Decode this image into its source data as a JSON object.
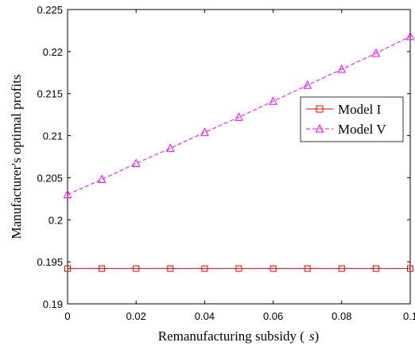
{
  "chart_data": {
    "type": "line",
    "x": [
      0,
      0.01,
      0.02,
      0.03,
      0.04,
      0.05,
      0.06,
      0.07,
      0.08,
      0.09,
      0.1
    ],
    "series": [
      {
        "name": "Model I",
        "color": "#ff0000",
        "line_style": "solid",
        "marker": "square",
        "values": [
          0.1942,
          0.1942,
          0.1942,
          0.1942,
          0.1942,
          0.1942,
          0.1942,
          0.1942,
          0.1942,
          0.1942,
          0.1942
        ]
      },
      {
        "name": "Model V",
        "color": "#ff00ff",
        "line_style": "dashed",
        "marker": "triangle",
        "values": [
          0.203,
          0.2048,
          0.2067,
          0.2085,
          0.2104,
          0.2122,
          0.2141,
          0.216,
          0.2179,
          0.2198,
          0.2218
        ]
      }
    ],
    "xlabel": "Remanufacturing subsidy ( s)",
    "xlabel_main": "Remanufacturing subsidy (",
    "xlabel_var": "s",
    "xlabel_close": ")",
    "ylabel": "Manufacturer's optimal profits",
    "xlim": [
      0,
      0.1
    ],
    "ylim": [
      0.19,
      0.225
    ],
    "xticks": [
      0,
      0.02,
      0.04,
      0.06,
      0.08,
      0.1
    ],
    "xtick_labels": [
      "0",
      "0.02",
      "0.04",
      "0.06",
      "0.08",
      "0.1"
    ],
    "yticks": [
      0.19,
      0.195,
      0.2,
      0.205,
      0.21,
      0.215,
      0.22,
      0.225
    ],
    "ytick_labels": [
      "0.19",
      "0.195",
      "0.2",
      "0.205",
      "0.21",
      "0.215",
      "0.22",
      "0.225"
    ],
    "grid": false,
    "legend_position": "right"
  }
}
